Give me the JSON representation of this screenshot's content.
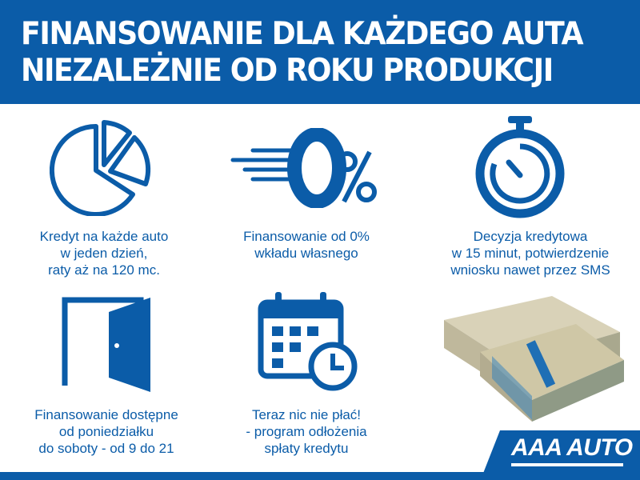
{
  "header": {
    "line1": "FINANSOWANIE DLA KAŻDEGO AUTA",
    "line2": "NIEZALEŻNIE OD ROKU PRODUKCJI"
  },
  "features": [
    {
      "icon": "pie-chart-icon",
      "lines": [
        "Kredyt na każde auto",
        "w jeden dzień,",
        "raty aż na 120 mc."
      ]
    },
    {
      "icon": "zero-percent-icon",
      "lines": [
        "Finansowanie od 0%",
        "wkładu własnego"
      ]
    },
    {
      "icon": "stopwatch-icon",
      "lines": [
        "Decyzja kredytowa",
        "w 15 minut, potwierdzenie",
        "wniosku nawet przez SMS"
      ]
    },
    {
      "icon": "open-door-icon",
      "lines": [
        "Finansowanie dostępne",
        "od poniedziałku",
        "do soboty - od 9 do 21"
      ]
    },
    {
      "icon": "calendar-clock-icon",
      "lines": [
        "Teraz nic nie płać!",
        "- program odłożenia",
        "spłaty kredytu"
      ]
    }
  ],
  "logo": {
    "text": "AAA AUTO"
  },
  "colors": {
    "brand": "#0b5ca8",
    "background": "#ffffff"
  }
}
